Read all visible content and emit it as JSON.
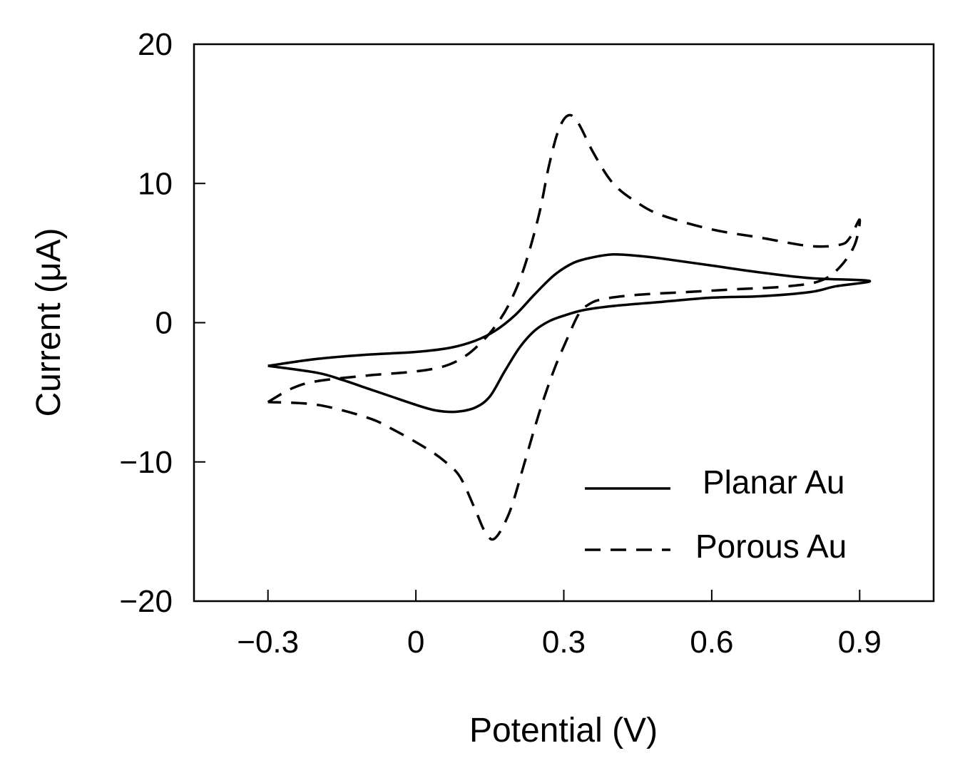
{
  "chart_data": {
    "type": "line",
    "title": "",
    "xlabel": "Potential (V)",
    "ylabel": "Current (μA)",
    "xlim": [
      -0.45,
      1.05
    ],
    "ylim": [
      -20,
      20
    ],
    "x_ticks": [
      -0.3,
      0,
      0.3,
      0.6,
      0.9
    ],
    "x_tick_labels": [
      "−0.3",
      "0",
      "0.3",
      "0.6",
      "0.9"
    ],
    "y_ticks": [
      -20,
      -10,
      0,
      10,
      20
    ],
    "y_tick_labels": [
      "−20",
      "−10",
      "0",
      "10",
      "20"
    ],
    "grid": false,
    "legend_position": "bottom-right",
    "series": [
      {
        "name": "Planar Au",
        "line_style": "solid",
        "color": "#000000",
        "points": [
          [
            -0.3,
            -3.1
          ],
          [
            -0.2,
            -2.6
          ],
          [
            -0.1,
            -2.3
          ],
          [
            0.0,
            -2.1
          ],
          [
            0.07,
            -1.8
          ],
          [
            0.12,
            -1.3
          ],
          [
            0.16,
            -0.6
          ],
          [
            0.2,
            0.5
          ],
          [
            0.24,
            2.0
          ],
          [
            0.28,
            3.4
          ],
          [
            0.32,
            4.3
          ],
          [
            0.36,
            4.7
          ],
          [
            0.4,
            4.9
          ],
          [
            0.45,
            4.8
          ],
          [
            0.5,
            4.6
          ],
          [
            0.6,
            4.1
          ],
          [
            0.7,
            3.6
          ],
          [
            0.8,
            3.2
          ],
          [
            0.92,
            3.0
          ],
          [
            0.85,
            2.6
          ],
          [
            0.8,
            2.2
          ],
          [
            0.7,
            1.9
          ],
          [
            0.6,
            1.8
          ],
          [
            0.5,
            1.5
          ],
          [
            0.4,
            1.2
          ],
          [
            0.34,
            0.9
          ],
          [
            0.3,
            0.5
          ],
          [
            0.27,
            0.1
          ],
          [
            0.24,
            -0.6
          ],
          [
            0.21,
            -1.8
          ],
          [
            0.18,
            -3.5
          ],
          [
            0.15,
            -5.3
          ],
          [
            0.12,
            -6.1
          ],
          [
            0.08,
            -6.4
          ],
          [
            0.04,
            -6.3
          ],
          [
            0.0,
            -5.9
          ],
          [
            -0.05,
            -5.3
          ],
          [
            -0.1,
            -4.7
          ],
          [
            -0.15,
            -4.1
          ],
          [
            -0.2,
            -3.6
          ],
          [
            -0.3,
            -3.1
          ]
        ]
      },
      {
        "name": "Porous Au",
        "line_style": "dashed",
        "color": "#000000",
        "points": [
          [
            -0.3,
            -5.7
          ],
          [
            -0.25,
            -4.7
          ],
          [
            -0.2,
            -4.2
          ],
          [
            -0.1,
            -3.8
          ],
          [
            0.0,
            -3.5
          ],
          [
            0.06,
            -3.1
          ],
          [
            0.1,
            -2.4
          ],
          [
            0.13,
            -1.5
          ],
          [
            0.16,
            -0.3
          ],
          [
            0.19,
            1.4
          ],
          [
            0.22,
            4.0
          ],
          [
            0.25,
            7.8
          ],
          [
            0.27,
            11.3
          ],
          [
            0.29,
            13.9
          ],
          [
            0.31,
            14.9
          ],
          [
            0.33,
            14.3
          ],
          [
            0.36,
            12.2
          ],
          [
            0.4,
            10.0
          ],
          [
            0.45,
            8.6
          ],
          [
            0.5,
            7.7
          ],
          [
            0.6,
            6.7
          ],
          [
            0.7,
            6.1
          ],
          [
            0.8,
            5.5
          ],
          [
            0.86,
            5.6
          ],
          [
            0.88,
            6.1
          ],
          [
            0.9,
            7.4
          ],
          [
            0.89,
            5.6
          ],
          [
            0.86,
            4.0
          ],
          [
            0.82,
            3.0
          ],
          [
            0.75,
            2.6
          ],
          [
            0.65,
            2.4
          ],
          [
            0.55,
            2.2
          ],
          [
            0.45,
            2.0
          ],
          [
            0.38,
            1.7
          ],
          [
            0.35,
            1.3
          ],
          [
            0.33,
            0.6
          ],
          [
            0.31,
            -0.9
          ],
          [
            0.28,
            -3.4
          ],
          [
            0.25,
            -6.5
          ],
          [
            0.22,
            -10.1
          ],
          [
            0.19,
            -13.6
          ],
          [
            0.16,
            -15.5
          ],
          [
            0.14,
            -15.0
          ],
          [
            0.12,
            -13.4
          ],
          [
            0.09,
            -11.1
          ],
          [
            0.06,
            -10.0
          ],
          [
            0.02,
            -9.0
          ],
          [
            -0.05,
            -7.6
          ],
          [
            -0.1,
            -6.8
          ],
          [
            -0.2,
            -5.9
          ],
          [
            -0.3,
            -5.7
          ]
        ]
      }
    ],
    "legend": [
      {
        "label": "Planar Au",
        "line_style": "solid"
      },
      {
        "label": "Porous Au",
        "line_style": "dashed"
      }
    ]
  }
}
